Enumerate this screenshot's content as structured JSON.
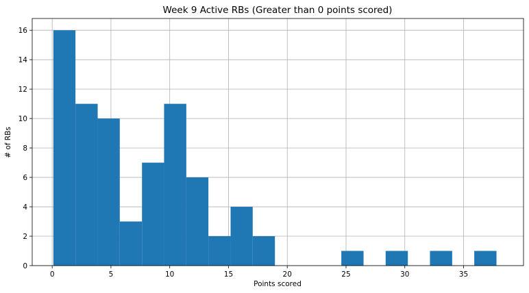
{
  "chart_data": {
    "type": "bar",
    "title": "Week 9 Active RBs (Greater than 0 points scored)",
    "xlabel": "Points scored",
    "ylabel": "# of RBs",
    "xlim": [
      -1.7,
      40.1
    ],
    "ylim": [
      0,
      16.8
    ],
    "xticks": [
      0,
      5,
      10,
      15,
      20,
      25,
      30,
      35
    ],
    "yticks": [
      0,
      2,
      4,
      6,
      8,
      10,
      12,
      14,
      16
    ],
    "grid": true,
    "bar_color": "#1f77b4",
    "bins": [
      {
        "x0": 0.1,
        "x1": 1.98,
        "value": 16
      },
      {
        "x0": 1.98,
        "x1": 3.87,
        "value": 11
      },
      {
        "x0": 3.87,
        "x1": 5.75,
        "value": 10
      },
      {
        "x0": 5.75,
        "x1": 7.64,
        "value": 3
      },
      {
        "x0": 7.64,
        "x1": 9.52,
        "value": 7
      },
      {
        "x0": 9.52,
        "x1": 11.41,
        "value": 11
      },
      {
        "x0": 11.41,
        "x1": 13.29,
        "value": 6
      },
      {
        "x0": 13.29,
        "x1": 15.18,
        "value": 2
      },
      {
        "x0": 15.18,
        "x1": 17.06,
        "value": 4
      },
      {
        "x0": 17.06,
        "x1": 18.95,
        "value": 2
      },
      {
        "x0": 18.95,
        "x1": 20.83,
        "value": 0
      },
      {
        "x0": 20.83,
        "x1": 22.72,
        "value": 0
      },
      {
        "x0": 22.72,
        "x1": 24.6,
        "value": 0
      },
      {
        "x0": 24.6,
        "x1": 26.49,
        "value": 1
      },
      {
        "x0": 26.49,
        "x1": 28.37,
        "value": 0
      },
      {
        "x0": 28.37,
        "x1": 30.26,
        "value": 1
      },
      {
        "x0": 30.26,
        "x1": 32.14,
        "value": 0
      },
      {
        "x0": 32.14,
        "x1": 34.03,
        "value": 1
      },
      {
        "x0": 34.03,
        "x1": 35.91,
        "value": 0
      },
      {
        "x0": 35.91,
        "x1": 37.8,
        "value": 1
      }
    ]
  }
}
